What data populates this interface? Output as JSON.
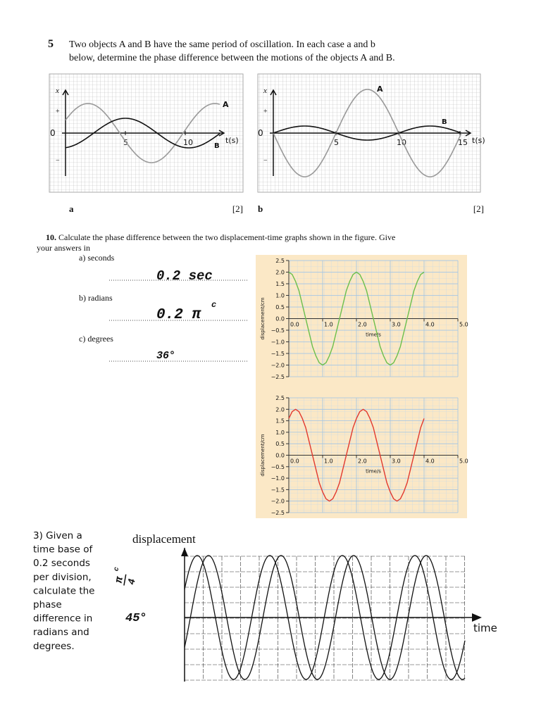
{
  "question5": {
    "number": "5",
    "lines": [
      "Two objects A and B have the same period of oscillation. In each case a and b",
      "below, determine the phase difference between the motions of the objects A and B."
    ],
    "graph_a": {
      "y_label": "x",
      "plus": "+",
      "zero": "0",
      "minus": "−",
      "x_ticks": [
        "5",
        "10"
      ],
      "x_label": "t(s)",
      "curve_labels": [
        "A",
        "B"
      ],
      "caption": "a",
      "marks": "[2]"
    },
    "graph_b": {
      "y_label": "x",
      "plus": "+",
      "zero": "0",
      "minus": "−",
      "x_ticks": [
        "5",
        "10",
        "15"
      ],
      "x_label": "t(s)",
      "curve_labels": [
        "A",
        "B"
      ],
      "caption": "b",
      "marks": "[2]"
    }
  },
  "question10": {
    "heading": "10.",
    "text": "Calculate the phase difference between the two displacement-time graphs shown in the figure. Give",
    "text2": "your answers in",
    "parts": [
      {
        "label": "a) seconds",
        "answer": "0.2 sec"
      },
      {
        "label": "b) radians",
        "answer": "0.2 π",
        "superscript": "c"
      },
      {
        "label": "c) degrees",
        "answer": "36°"
      }
    ]
  },
  "chart_data": [
    {
      "type": "line",
      "y_label": "displacement/cm",
      "x_label": "time/s",
      "x": [
        0,
        0.1,
        0.2,
        0.3,
        0.4,
        0.5,
        0.6,
        0.7,
        0.8,
        0.9,
        1,
        1.1,
        1.2,
        1.3,
        1.4,
        1.5,
        1.6,
        1.7,
        1.8,
        1.9,
        2,
        2.1,
        2.2,
        2.3,
        2.4,
        2.5,
        2.6,
        2.7,
        2.8,
        2.9,
        3,
        3.1,
        3.2,
        3.3,
        3.4,
        3.5,
        3.6,
        3.7,
        3.8,
        3.9,
        4
      ],
      "series": [
        {
          "color": "#6cbf4c",
          "values": [
            2,
            1.9,
            1.6,
            1.2,
            0.6,
            0,
            -0.6,
            -1.2,
            -1.6,
            -1.9,
            -2,
            -1.9,
            -1.6,
            -1.2,
            -0.6,
            0,
            0.6,
            1.2,
            1.6,
            1.9,
            2,
            1.9,
            1.6,
            1.2,
            0.6,
            0,
            -0.6,
            -1.2,
            -1.6,
            -1.9,
            -2,
            -1.9,
            -1.6,
            -1.2,
            -0.6,
            0,
            0.6,
            1.2,
            1.6,
            1.9,
            2
          ]
        }
      ],
      "xlim": [
        0,
        5
      ],
      "ylim": [
        -2.5,
        2.5
      ],
      "xticks": [
        {
          "value": 0,
          "label": "0.0"
        },
        {
          "value": 1,
          "label": "1.0"
        },
        {
          "value": 2,
          "label": "2.0"
        },
        {
          "value": 3,
          "label": "3.0"
        },
        {
          "value": 4,
          "label": "4.0"
        },
        {
          "value": 5,
          "label": "5.0"
        }
      ],
      "yticks": [
        2.5,
        {
          "value": 2,
          "label": "2.0"
        },
        1.5,
        {
          "value": 1,
          "label": "1.0"
        },
        0.5,
        {
          "value": 0,
          "label": "0.0"
        },
        {
          "value": -0.5,
          "label": "−0.5"
        },
        {
          "value": -1,
          "label": "−1.0"
        },
        {
          "value": -1.5,
          "label": "−1.5"
        },
        {
          "value": -2,
          "label": "−2.0"
        },
        {
          "value": -2.5,
          "label": "−2.5"
        }
      ],
      "grid": true
    },
    {
      "type": "line",
      "y_label": "displacement/cm",
      "x_label": "time/s",
      "x": [
        0,
        0.1,
        0.2,
        0.3,
        0.4,
        0.5,
        0.6,
        0.7,
        0.8,
        0.9,
        1,
        1.1,
        1.2,
        1.3,
        1.4,
        1.5,
        1.6,
        1.7,
        1.8,
        1.9,
        2,
        2.1,
        2.2,
        2.3,
        2.4,
        2.5,
        2.6,
        2.7,
        2.8,
        2.9,
        3,
        3.1,
        3.2,
        3.3,
        3.4,
        3.5,
        3.6,
        3.7,
        3.8,
        3.9,
        4
      ],
      "series": [
        {
          "color": "#e2392e",
          "values": [
            1.6,
            1.9,
            2,
            1.9,
            1.6,
            1.2,
            0.6,
            0,
            -0.6,
            -1.2,
            -1.6,
            -1.9,
            -2,
            -1.9,
            -1.6,
            -1.2,
            -0.6,
            0,
            0.6,
            1.2,
            1.6,
            1.9,
            2,
            1.9,
            1.6,
            1.2,
            0.6,
            0,
            -0.6,
            -1.2,
            -1.6,
            -1.9,
            -2,
            -1.9,
            -1.6,
            -1.2,
            -0.6,
            0,
            0.6,
            1.2,
            1.6
          ]
        }
      ],
      "xlim": [
        0,
        5
      ],
      "ylim": [
        -2.5,
        2.5
      ],
      "xticks": [
        {
          "value": 0,
          "label": "0.0"
        },
        {
          "value": 1,
          "label": "1.0"
        },
        {
          "value": 2,
          "label": "2.0"
        },
        {
          "value": 3,
          "label": "3.0"
        },
        {
          "value": 4,
          "label": "4.0"
        },
        {
          "value": 5,
          "label": "5.0"
        }
      ],
      "yticks": [
        2.5,
        {
          "value": 2,
          "label": "2.0"
        },
        1.5,
        {
          "value": 1,
          "label": "1.0"
        },
        0.5,
        {
          "value": 0,
          "label": "0.0"
        },
        {
          "value": -0.5,
          "label": "−0.5"
        },
        {
          "value": -1,
          "label": "−1.0"
        },
        {
          "value": -1.5,
          "label": "−1.5"
        },
        {
          "value": -2,
          "label": "−2.0"
        },
        {
          "value": -2.5,
          "label": "−2.5"
        }
      ],
      "grid": true
    }
  ],
  "question3": {
    "lines": [
      "3) Given a",
      "time base of",
      "0.2 seconds",
      "per division,",
      "calculate the",
      "phase",
      "difference in",
      "radians and",
      "degrees."
    ],
    "y_label": "displacement",
    "x_label": "time",
    "answer_radians": {
      "numerator": "π",
      "denominator": "4",
      "superscript": "c"
    },
    "answer_degrees": "45°"
  }
}
